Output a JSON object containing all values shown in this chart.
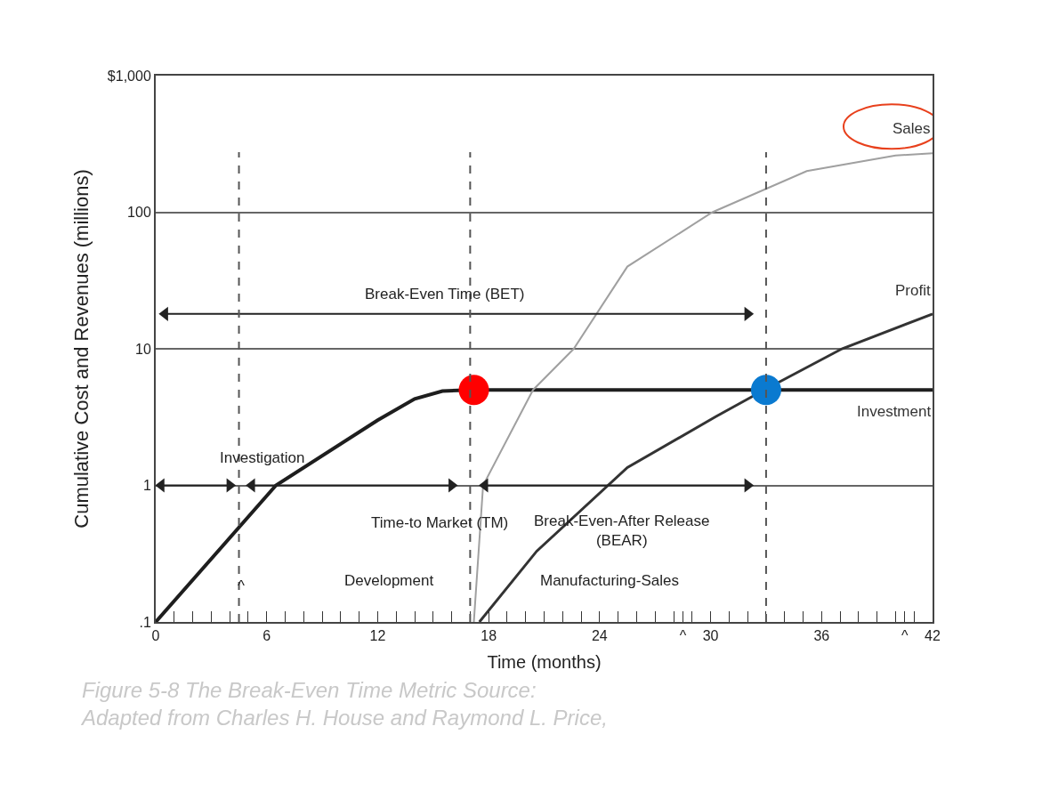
{
  "chart_data": {
    "type": "line",
    "xlabel": "Time (months)",
    "ylabel": "Cumulative Cost and Revenues (millions)",
    "series": [
      {
        "name": "Investment",
        "color": "#1e1e1e",
        "x": [
          0,
          6.5,
          12,
          14,
          15.5,
          17,
          42
        ],
        "values": [
          0.1,
          1,
          3,
          4.3,
          4.9,
          5,
          5
        ]
      },
      {
        "name": "Sales",
        "color": "#a0a0a0",
        "x": [
          17.2,
          17.7,
          20.4,
          22.6,
          25.5,
          30.1,
          35.2,
          40,
          42
        ],
        "values": [
          0.1,
          1,
          5,
          10,
          40,
          100,
          200,
          260,
          270
        ]
      },
      {
        "name": "Profit",
        "color": "#333333",
        "x": [
          17.5,
          20.6,
          25.5,
          30.3,
          32.9,
          37.1,
          42
        ],
        "values": [
          0.1,
          0.33,
          1.35,
          3.2,
          5,
          10,
          18
        ]
      },
      {
        "type": "scatter",
        "marker": "circle",
        "colors": [
          "#ff0000",
          "#0a7ad0"
        ],
        "x": [
          17.2,
          33
        ],
        "values": [
          5,
          5
        ]
      },
      {
        "type": "line",
        "marker": "triangle",
        "color": "#222222",
        "x": [
          0.5,
          32
        ],
        "values": [
          18,
          18
        ]
      },
      {
        "type": "line",
        "marker": "triangle",
        "color": "#222222",
        "x": [
          0.3,
          4
        ],
        "values": [
          1,
          1
        ]
      },
      {
        "type": "line",
        "marker": "triangle",
        "color": "#222222",
        "x": [
          5.2,
          16
        ],
        "values": [
          1,
          1
        ]
      },
      {
        "type": "line",
        "marker": "triangle",
        "color": "#222222",
        "x": [
          17.8,
          32
        ],
        "values": [
          1,
          1
        ]
      }
    ],
    "log": "y",
    "xlim": [
      0,
      42
    ],
    "ylim": [
      0.1,
      1000
    ],
    "xticks": [
      0,
      {
        "value": 1,
        "label": null
      },
      {
        "value": 2,
        "label": null
      },
      {
        "value": 3,
        "label": null
      },
      {
        "value": 4,
        "label": null
      },
      {
        "value": 5,
        "label": null
      },
      6,
      {
        "value": 7,
        "label": null
      },
      {
        "value": 8,
        "label": null
      },
      {
        "value": 9,
        "label": null
      },
      {
        "value": 10,
        "label": null
      },
      {
        "value": 11,
        "label": null
      },
      12,
      {
        "value": 13,
        "label": null
      },
      {
        "value": 14,
        "label": null
      },
      {
        "value": 15,
        "label": null
      },
      {
        "value": 16,
        "label": null
      },
      {
        "value": 17,
        "label": null
      },
      18,
      {
        "value": 19,
        "label": null
      },
      {
        "value": 20,
        "label": null
      },
      {
        "value": 21,
        "label": null
      },
      {
        "value": 22,
        "label": null
      },
      {
        "value": 23,
        "label": null
      },
      24,
      {
        "value": 25,
        "label": null
      },
      {
        "value": 26,
        "label": null
      },
      {
        "value": 27,
        "label": null
      },
      {
        "value": 28,
        "label": null
      },
      {
        "value": 28.5,
        "label": "^"
      },
      {
        "value": 29,
        "label": null
      },
      30,
      {
        "value": 31,
        "label": null
      },
      {
        "value": 32,
        "label": null
      },
      {
        "value": 33,
        "label": null
      },
      {
        "value": 34,
        "label": null
      },
      {
        "value": 35,
        "label": null
      },
      36,
      {
        "value": 37,
        "label": null
      },
      {
        "value": 38,
        "label": null
      },
      {
        "value": 39,
        "label": null
      },
      {
        "value": 40,
        "label": null
      },
      {
        "value": 40.5,
        "label": "^"
      },
      {
        "value": 41,
        "label": null
      },
      42
    ],
    "yticks": [
      {
        "value": 0.1,
        "label": ".1"
      },
      1,
      10,
      100,
      {
        "value": 1000,
        "label": "$1,000"
      }
    ],
    "grid": "y",
    "legend": false,
    "marker": "none",
    "ref_lines": [
      {
        "axis": "x",
        "value": 4.5,
        "line_style": "dashed"
      },
      {
        "axis": "x",
        "value": 17,
        "line_style": "dashed"
      },
      {
        "axis": "x",
        "value": 33,
        "line_style": "dashed"
      }
    ],
    "annotations": [
      "Break-Even Time (BET)",
      "Investigation",
      "Time-to Market (TM)",
      "Break-Even-After Release\n(BEAR)",
      "Development",
      "Manufacturing-Sales",
      "^",
      "Figure 5-8 The Break-Even Time Metric Source:\nAdapted from Charles H. House and Raymond L. Price,"
    ]
  }
}
